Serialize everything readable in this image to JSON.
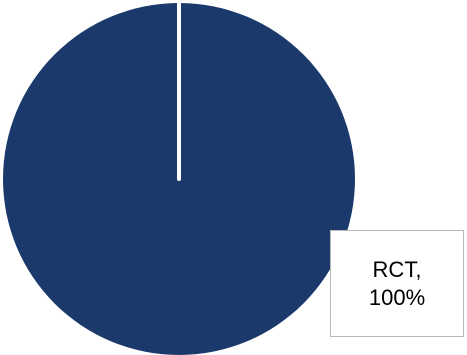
{
  "chart_data": {
    "type": "pie",
    "title": "",
    "slices": [
      {
        "name": "RCT",
        "value": 100,
        "color": "#1b3a6b"
      }
    ],
    "labels": [
      {
        "line1": "RCT,",
        "line2": "100%"
      }
    ],
    "legend": "none"
  }
}
